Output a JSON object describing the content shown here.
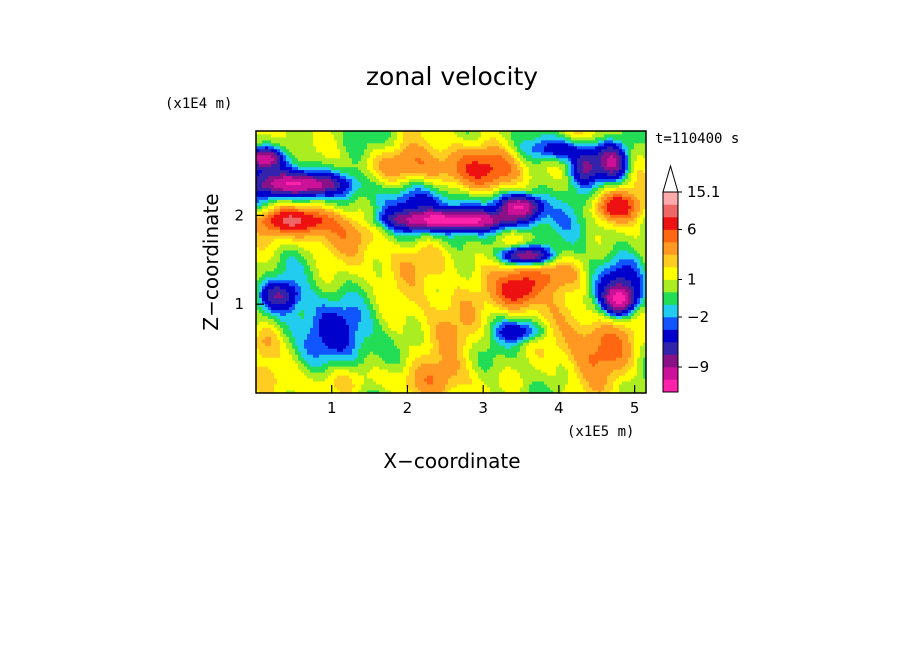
{
  "chart_data": {
    "type": "heatmap",
    "title": "zonal velocity",
    "xlabel": "X−coordinate",
    "ylabel": "Z−coordinate",
    "x_multiplier": "(x1E5 m)",
    "y_multiplier": "(x1E4 m)",
    "time_label": "t=110400 s",
    "xlim": [
      0,
      5.15
    ],
    "ylim": [
      0,
      2.95
    ],
    "xticks": [
      1,
      2,
      3,
      4,
      5
    ],
    "yticks": [
      1,
      2
    ],
    "colorbar": {
      "labels": [
        {
          "value": 15.1,
          "text": "15.1"
        },
        {
          "value": 6,
          "text": "6"
        },
        {
          "value": 1,
          "text": "1"
        },
        {
          "value": -2,
          "text": "−2"
        },
        {
          "value": -9,
          "text": "−9"
        }
      ],
      "colors": [
        "#ff22aa",
        "#cc1199",
        "#881188",
        "#3322aa",
        "#0000cc",
        "#1155ff",
        "#22ccee",
        "#22dd55",
        "#aaee22",
        "#ffff00",
        "#ffcc22",
        "#ff9922",
        "#ff6611",
        "#ee1111",
        "#ee6666",
        "#ffaaaa"
      ]
    },
    "features": [
      {
        "x": 0.6,
        "z": 2.35,
        "sx": 0.5,
        "sz": 0.12,
        "v": -11
      },
      {
        "x": 0.1,
        "z": 2.65,
        "sx": 0.2,
        "sz": 0.1,
        "v": -10
      },
      {
        "x": 0.4,
        "z": 2.45,
        "sx": 0.9,
        "sz": 0.25,
        "v": -4
      },
      {
        "x": 0.5,
        "z": 1.95,
        "sx": 0.45,
        "sz": 0.12,
        "v": 7
      },
      {
        "x": 0.8,
        "z": 1.85,
        "sx": 1.1,
        "sz": 0.25,
        "v": 3
      },
      {
        "x": 2.6,
        "z": 1.95,
        "sx": 0.75,
        "sz": 0.1,
        "v": -12
      },
      {
        "x": 2.5,
        "z": 2.05,
        "sx": 1.2,
        "sz": 0.3,
        "v": -4
      },
      {
        "x": 2.0,
        "z": 2.55,
        "sx": 0.9,
        "sz": 0.22,
        "v": 4
      },
      {
        "x": 3.2,
        "z": 2.5,
        "sx": 0.45,
        "sz": 0.25,
        "v": 5
      },
      {
        "x": 3.5,
        "z": 2.1,
        "sx": 0.25,
        "sz": 0.12,
        "v": -11
      },
      {
        "x": 3.55,
        "z": 1.55,
        "sx": 0.3,
        "sz": 0.1,
        "v": -11
      },
      {
        "x": 3.45,
        "z": 1.15,
        "sx": 0.28,
        "sz": 0.2,
        "v": 7
      },
      {
        "x": 3.9,
        "z": 1.35,
        "sx": 0.35,
        "sz": 0.18,
        "v": 4
      },
      {
        "x": 4.35,
        "z": 2.55,
        "sx": 0.18,
        "sz": 0.18,
        "v": -8
      },
      {
        "x": 4.7,
        "z": 2.6,
        "sx": 0.2,
        "sz": 0.2,
        "v": -10
      },
      {
        "x": 4.75,
        "z": 2.1,
        "sx": 0.3,
        "sz": 0.15,
        "v": 6
      },
      {
        "x": 4.8,
        "z": 1.05,
        "sx": 0.2,
        "sz": 0.15,
        "v": -11
      },
      {
        "x": 4.85,
        "z": 1.25,
        "sx": 0.35,
        "sz": 0.25,
        "v": -4
      },
      {
        "x": 4.6,
        "z": 0.55,
        "sx": 0.55,
        "sz": 0.35,
        "v": 4
      },
      {
        "x": 3.5,
        "z": 0.7,
        "sx": 0.3,
        "sz": 0.12,
        "v": -5
      },
      {
        "x": 1.0,
        "z": 0.7,
        "sx": 0.9,
        "sz": 0.4,
        "v": -3
      },
      {
        "x": 0.3,
        "z": 1.1,
        "sx": 0.25,
        "sz": 0.15,
        "v": -6
      },
      {
        "x": 0.1,
        "z": 0.6,
        "sx": 0.2,
        "sz": 0.2,
        "v": 3
      },
      {
        "x": 1.8,
        "z": 0.15,
        "sx": 1.5,
        "sz": 0.2,
        "v": 2
      },
      {
        "x": 2.6,
        "z": 0.9,
        "sx": 0.5,
        "sz": 0.5,
        "v": 3
      },
      {
        "x": 4.05,
        "z": 2.75,
        "sx": 0.4,
        "sz": 0.12,
        "v": -5
      },
      {
        "x": 2.2,
        "z": 1.5,
        "sx": 0.6,
        "sz": 0.25,
        "v": 2
      }
    ]
  }
}
